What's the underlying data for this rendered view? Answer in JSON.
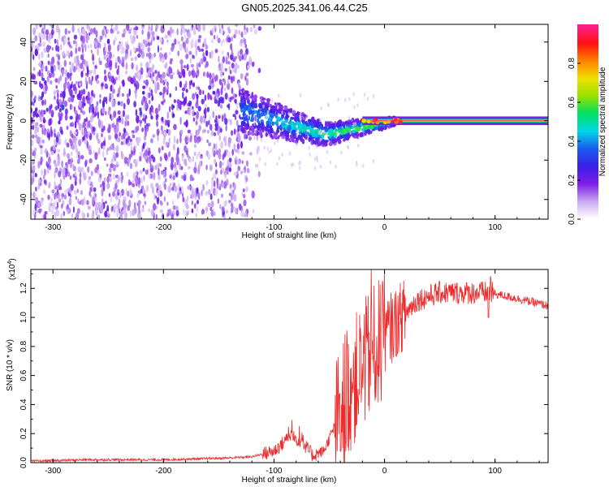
{
  "title": "GN05.2025.341.06.44.C25",
  "chart_data": [
    {
      "type": "heatmap",
      "xlabel": "Height of straight line (km)",
      "ylabel": "Frequency (Hz)",
      "xlim": [
        -320,
        148
      ],
      "ylim": [
        -50,
        49
      ],
      "x_ticks": [
        -300,
        -200,
        -100,
        0,
        100
      ],
      "y_ticks": [
        -40,
        -20,
        0,
        20,
        40
      ],
      "colorbar": {
        "label": "Normalized spectral amplitude",
        "range": [
          0,
          1
        ],
        "ticks": [
          0.0,
          0.2,
          0.4,
          0.6,
          0.8
        ],
        "colors": [
          "#ffffff",
          "#c8a8f0",
          "#7a1de8",
          "#3a20e6",
          "#1a5cf0",
          "#00d8e6",
          "#00e060",
          "#9ae000",
          "#f0e000",
          "#ff8000",
          "#ff1010",
          "#ff2090"
        ]
      },
      "regions": [
        {
          "name": "noise",
          "x": [
            -320,
            -130
          ],
          "freq_spread": 49,
          "amplitude": 0.15
        },
        {
          "name": "transition",
          "x": [
            -130,
            10
          ],
          "freq_center_start": 5,
          "freq_center_mid": -7,
          "amplitude": 0.4
        },
        {
          "name": "carrier",
          "x": [
            10,
            148
          ],
          "freq": 0,
          "amplitude": 0.95
        }
      ]
    },
    {
      "type": "line",
      "xlabel": "Height of straight line (km)",
      "ylabel": "SNR (10 * v/v)",
      "y_multiplier": "(x10",
      "y_multiplier_exp": "4",
      "xlim": [
        -320,
        148
      ],
      "ylim": [
        0,
        1.33
      ],
      "x_ticks": [
        -300,
        -200,
        -100,
        0,
        100
      ],
      "y_ticks": [
        0.0,
        0.2,
        0.4,
        0.6,
        0.8,
        1.0,
        1.2
      ],
      "color": "#ee2a2a",
      "keypoints": [
        {
          "x": -320,
          "y": 0.01
        },
        {
          "x": -270,
          "y": 0.02
        },
        {
          "x": -200,
          "y": 0.02
        },
        {
          "x": -150,
          "y": 0.03
        },
        {
          "x": -120,
          "y": 0.04
        },
        {
          "x": -100,
          "y": 0.08
        },
        {
          "x": -85,
          "y": 0.18
        },
        {
          "x": -75,
          "y": 0.15
        },
        {
          "x": -65,
          "y": 0.05
        },
        {
          "x": -55,
          "y": 0.08
        },
        {
          "x": -45,
          "y": 0.25
        },
        {
          "x": -35,
          "y": 0.45
        },
        {
          "x": -25,
          "y": 0.6
        },
        {
          "x": -15,
          "y": 0.72
        },
        {
          "x": -5,
          "y": 0.82
        },
        {
          "x": 5,
          "y": 0.92
        },
        {
          "x": 15,
          "y": 1.0
        },
        {
          "x": 30,
          "y": 1.12
        },
        {
          "x": 50,
          "y": 1.17
        },
        {
          "x": 70,
          "y": 1.17
        },
        {
          "x": 95,
          "y": 1.17
        },
        {
          "x": 120,
          "y": 1.13
        },
        {
          "x": 148,
          "y": 1.08
        }
      ]
    }
  ]
}
